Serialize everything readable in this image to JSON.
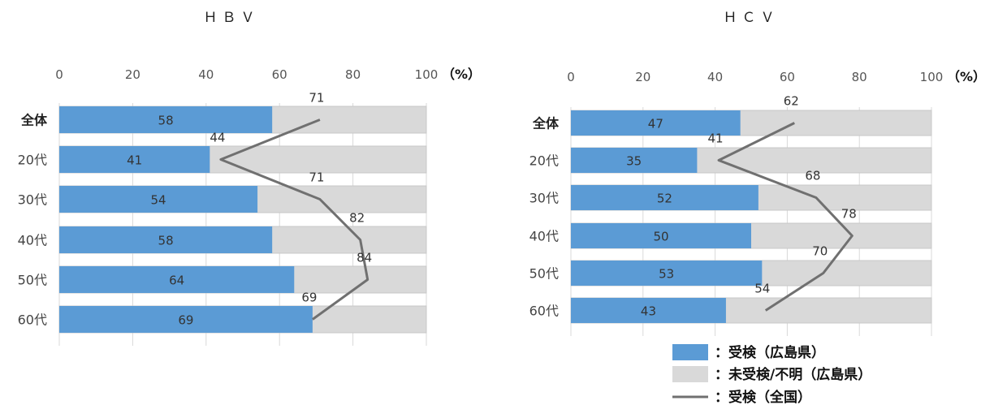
{
  "chart_data": [
    {
      "type": "bar",
      "title": "ＨＢＶ",
      "categories": [
        "全体",
        "20代",
        "30代",
        "40代",
        "50代",
        "60代"
      ],
      "series": [
        {
          "name": "：受検（広島県）",
          "values": [
            58,
            41,
            54,
            58,
            64,
            69
          ]
        },
        {
          "name": "：受検（全国）",
          "values": [
            71,
            44,
            71,
            82,
            84,
            69
          ]
        }
      ],
      "xlim": [
        0,
        100
      ],
      "ticks": [
        0,
        20,
        40,
        60,
        80,
        100
      ],
      "unit_label": "（%）"
    },
    {
      "type": "bar",
      "title": "ＨＣＶ",
      "categories": [
        "全体",
        "20代",
        "30代",
        "40代",
        "50代",
        "60代"
      ],
      "series": [
        {
          "name": "：受検（広島県）",
          "values": [
            47,
            35,
            52,
            50,
            53,
            43
          ]
        },
        {
          "name": "：受検（全国）",
          "values": [
            62,
            41,
            68,
            78,
            70,
            54
          ]
        }
      ],
      "xlim": [
        0,
        100
      ],
      "ticks": [
        0,
        20,
        40,
        60,
        80,
        100
      ],
      "unit_label": "（%）"
    }
  ],
  "legend": {
    "items": [
      {
        "label": "：受検（広島県）",
        "color": "#5b9bd5"
      },
      {
        "label": "：未受検/不明（広島県）",
        "color": "#d9d9d9"
      },
      {
        "label": "：受検（全国）",
        "color": "#707070"
      }
    ]
  },
  "colors": {
    "bar": "#5b9bd5",
    "rest": "#d9d9d9",
    "line": "#707070"
  }
}
